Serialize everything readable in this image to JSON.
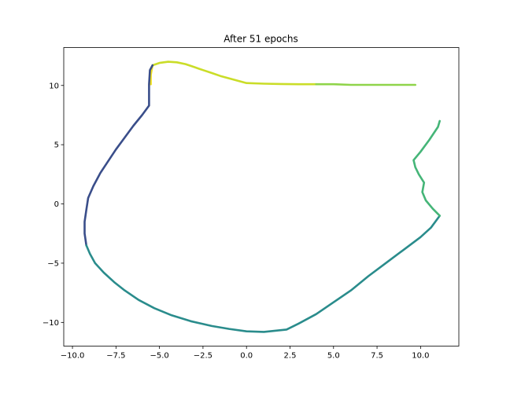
{
  "chart_data": {
    "type": "scatter",
    "title": "After 51 epochs",
    "xlabel": "",
    "ylabel": "",
    "xlim": [
      -10.5,
      12.2
    ],
    "ylim": [
      -12.0,
      13.2
    ],
    "xticks": [
      -10.0,
      -7.5,
      -5.0,
      -2.5,
      0.0,
      2.5,
      5.0,
      7.5,
      10.0
    ],
    "xtick_labels": [
      "−10.0",
      "−7.5",
      "−5.0",
      "−2.5",
      "0.0",
      "2.5",
      "5.0",
      "7.5",
      "10.0"
    ],
    "yticks": [
      -10,
      -5,
      0,
      5,
      10
    ],
    "ytick_labels": [
      "−10",
      "−5",
      "0",
      "5",
      "10"
    ],
    "grid": false,
    "colormap": "viridis",
    "series": [
      {
        "color": "#f0e020",
        "points": [
          [
            -5.5,
            10.1
          ],
          [
            -5.5,
            10.5
          ],
          [
            -5.5,
            10.9
          ],
          [
            -5.45,
            11.3
          ],
          [
            -5.4,
            11.7
          ]
        ]
      },
      {
        "color": "#cadd28",
        "points": [
          [
            -5.4,
            11.7
          ],
          [
            -5.0,
            11.9
          ],
          [
            -4.5,
            12.0
          ],
          [
            -4.0,
            11.95
          ],
          [
            -3.5,
            11.8
          ],
          [
            -3.0,
            11.55
          ],
          [
            -2.5,
            11.3
          ],
          [
            -2.0,
            11.05
          ],
          [
            -1.5,
            10.8
          ],
          [
            -1.0,
            10.6
          ],
          [
            -0.5,
            10.4
          ],
          [
            0.0,
            10.2
          ],
          [
            1.0,
            10.15
          ],
          [
            2.0,
            10.12
          ],
          [
            3.0,
            10.1
          ],
          [
            4.0,
            10.1
          ]
        ]
      },
      {
        "color": "#8fd44a",
        "points": [
          [
            4.0,
            10.1
          ],
          [
            5.0,
            10.1
          ],
          [
            6.0,
            10.05
          ],
          [
            7.0,
            10.05
          ],
          [
            8.0,
            10.05
          ],
          [
            9.0,
            10.05
          ],
          [
            9.7,
            10.05
          ]
        ]
      },
      {
        "color": "#3a4e8a",
        "points": [
          [
            -5.4,
            11.7
          ],
          [
            -5.55,
            11.3
          ],
          [
            -5.6,
            10.1
          ],
          [
            -5.6,
            9.0
          ],
          [
            -5.6,
            8.3
          ],
          [
            -6.0,
            7.5
          ],
          [
            -6.5,
            6.6
          ],
          [
            -7.0,
            5.6
          ],
          [
            -7.5,
            4.6
          ],
          [
            -8.0,
            3.5
          ],
          [
            -8.4,
            2.6
          ],
          [
            -8.8,
            1.5
          ],
          [
            -9.1,
            0.5
          ],
          [
            -9.2,
            -0.5
          ],
          [
            -9.3,
            -1.5
          ],
          [
            -9.3,
            -2.5
          ],
          [
            -9.2,
            -3.5
          ]
        ]
      },
      {
        "color": "#2a8c8c",
        "points": [
          [
            -9.2,
            -3.5
          ],
          [
            -9.0,
            -4.2
          ],
          [
            -8.7,
            -5.0
          ],
          [
            -8.2,
            -5.8
          ],
          [
            -7.6,
            -6.6
          ],
          [
            -7.0,
            -7.3
          ],
          [
            -6.2,
            -8.1
          ],
          [
            -5.3,
            -8.8
          ],
          [
            -4.3,
            -9.4
          ],
          [
            -3.2,
            -9.9
          ],
          [
            -2.0,
            -10.3
          ],
          [
            -1.0,
            -10.55
          ],
          [
            0.0,
            -10.75
          ],
          [
            1.0,
            -10.8
          ],
          [
            2.3,
            -10.6
          ],
          [
            3.0,
            -10.1
          ],
          [
            4.0,
            -9.3
          ],
          [
            5.0,
            -8.3
          ],
          [
            6.0,
            -7.3
          ],
          [
            7.0,
            -6.1
          ],
          [
            8.0,
            -5.0
          ],
          [
            9.0,
            -3.9
          ],
          [
            10.0,
            -2.8
          ],
          [
            10.6,
            -2.0
          ],
          [
            11.1,
            -1.0
          ]
        ]
      },
      {
        "color": "#45b578",
        "points": [
          [
            11.1,
            -1.0
          ],
          [
            10.7,
            -0.4
          ],
          [
            10.3,
            0.3
          ],
          [
            10.1,
            1.0
          ],
          [
            10.2,
            1.8
          ],
          [
            9.9,
            2.5
          ],
          [
            9.7,
            3.1
          ],
          [
            9.6,
            3.7
          ],
          [
            10.0,
            4.4
          ],
          [
            10.5,
            5.4
          ],
          [
            11.0,
            6.5
          ],
          [
            11.1,
            7.0
          ]
        ]
      }
    ]
  }
}
